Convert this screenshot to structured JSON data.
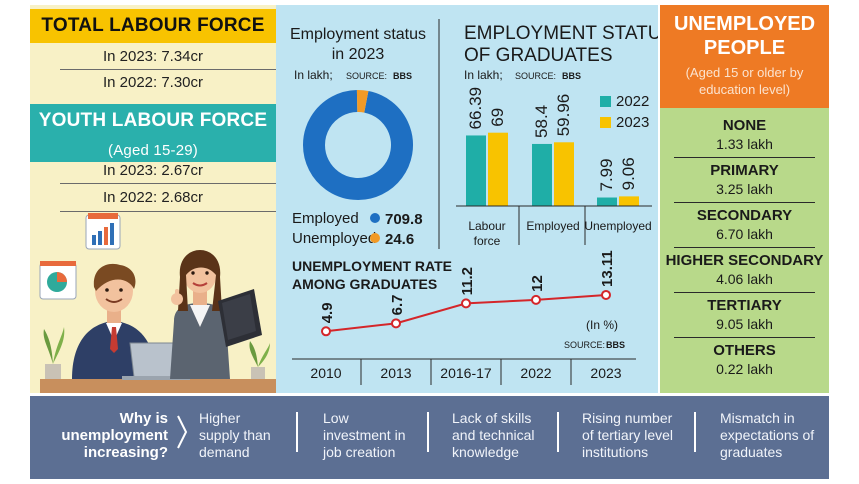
{
  "left": {
    "total_title": "TOTAL LABOUR FORCE",
    "total_2023": "In 2023: 7.34cr",
    "total_2022": "In 2022: 7.30cr",
    "youth_title": "YOUTH LABOUR FORCE",
    "youth_sub": "(Aged 15-29)",
    "youth_2023": "In 2023: 2.67cr",
    "youth_2022": "In 2022: 2.68cr"
  },
  "donut": {
    "title_line1": "Employment status",
    "title_line2": "in 2023",
    "unit": "In lakh;",
    "source_label": "SOURCE:",
    "source": "BBS",
    "employed_label": "Employed",
    "employed_value": "709.8",
    "unemployed_label": "Unemployed",
    "unemployed_value": "24.6"
  },
  "grad_status": {
    "title_line1": "EMPLOYMENT STATUS",
    "title_line2": "OF GRADUATES",
    "unit": "In lakh;",
    "source_label": "SOURCE:",
    "source": "BBS",
    "legend_2022": "2022",
    "legend_2023": "2023"
  },
  "rate": {
    "title_line1": "UNEMPLOYMENT RATE",
    "title_line2": "AMONG GRADUATES",
    "unit_note": "(In %)",
    "source_label": "SOURCE:",
    "source": "BBS"
  },
  "right": {
    "title_line1": "UNEMPLOYED",
    "title_line2": "PEOPLE",
    "subtitle_line1": "(Aged 15 or older by",
    "subtitle_line2": "education level)",
    "levels": [
      {
        "name": "NONE",
        "value": "1.33 lakh"
      },
      {
        "name": "PRIMARY",
        "value": "3.25 lakh"
      },
      {
        "name": "SECONDARY",
        "value": "6.70 lakh"
      },
      {
        "name": "HIGHER SECONDARY",
        "value": "4.06 lakh"
      },
      {
        "name": "TERTIARY",
        "value": "9.05 lakh"
      },
      {
        "name": "OTHERS",
        "value": "0.22 lakh"
      }
    ]
  },
  "bottom": {
    "question": "Why is\nunemployment\nincreasing?",
    "reasons": [
      "Higher\nsupply than\ndemand",
      "Low\ninvestment in\njob creation",
      "Lack of skills\nand technical\nknowledge",
      "Rising number\nof tertiary level\ninstitutions",
      "Mismatch in\nexpectations of\ngraduates"
    ]
  },
  "colors": {
    "yellow_band": "#f8c300",
    "teal_band": "#2ab0ac",
    "orange_band": "#ee7a24",
    "employed": "#1e6fc2",
    "unemployed": "#f29a26",
    "bar_2022": "#1faea7",
    "bar_2023": "#f8c300",
    "rate_line": "#d4262a",
    "bottom_bg": "#5c6f93"
  },
  "chart_data": [
    {
      "type": "pie",
      "title": "Employment status in 2023",
      "unit": "In lakh",
      "categories": [
        "Employed",
        "Unemployed"
      ],
      "values": [
        709.8,
        24.6
      ]
    },
    {
      "type": "bar",
      "title": "EMPLOYMENT STATUS OF GRADUATES",
      "unit": "In lakh",
      "categories": [
        "Labour force",
        "Employed",
        "Unemployed"
      ],
      "series": [
        {
          "name": "2022",
          "values": [
            66.39,
            58.4,
            7.99
          ]
        },
        {
          "name": "2023",
          "values": [
            69,
            59.96,
            9.06
          ]
        }
      ],
      "legend": "top-right"
    },
    {
      "type": "line",
      "title": "UNEMPLOYMENT RATE AMONG GRADUATES",
      "unit": "In %",
      "x": [
        "2010",
        "2013",
        "2016-17",
        "2022",
        "2023"
      ],
      "y": [
        4.9,
        6.7,
        11.2,
        12,
        13.11
      ],
      "labels": [
        "4.9",
        "6.7",
        "11.2",
        "12",
        "13.11"
      ]
    }
  ]
}
